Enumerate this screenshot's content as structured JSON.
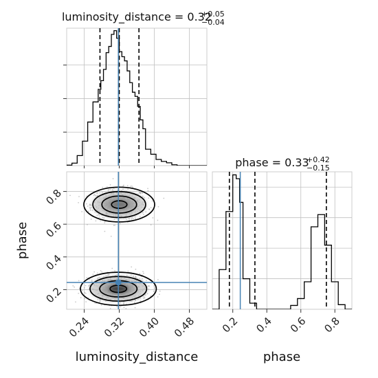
{
  "chart_data": {
    "type": "corner",
    "parameters": [
      "luminosity_distance",
      "phase"
    ],
    "truths": {
      "luminosity_distance": 0.318,
      "phase": 0.244
    },
    "colors": {
      "truth": "#4682b4",
      "hist": "#000000",
      "grid": "#c0c0c0",
      "frame": "#cccccc",
      "points": "#9a9a9a"
    },
    "grid": true,
    "panels": {
      "luminosity_distance_hist": {
        "title_prefix": "luminosity_distance = 0.32",
        "title_sup": "+0.05",
        "title_sub": "−0.04",
        "xlim": [
          0.2,
          0.52
        ],
        "ylim": [
          0,
          820
        ],
        "quantiles": [
          0.276,
          0.32,
          0.365
        ],
        "bin_edges": [
          0.2,
          0.212,
          0.224,
          0.236,
          0.248,
          0.26,
          0.272,
          0.278,
          0.284,
          0.29,
          0.296,
          0.302,
          0.308,
          0.314,
          0.32,
          0.326,
          0.332,
          0.338,
          0.344,
          0.35,
          0.356,
          0.362,
          0.368,
          0.374,
          0.38,
          0.392,
          0.404,
          0.416,
          0.428,
          0.44,
          0.452,
          0.52
        ],
        "counts": [
          3,
          15,
          60,
          146,
          260,
          380,
          455,
          507,
          574,
          674,
          711,
          783,
          805,
          760,
          680,
          650,
          625,
          565,
          495,
          438,
          413,
          353,
          273,
          220,
          98,
          68,
          37,
          25,
          17,
          5,
          0
        ]
      },
      "phase_hist": {
        "title_prefix": "phase = 0.33",
        "title_sup": "+0.42",
        "title_sub": "−0.15",
        "xlim": [
          0.08,
          0.9
        ],
        "ylim": [
          0,
          900
        ],
        "quantiles": [
          0.18,
          0.33,
          0.75
        ],
        "xticks": [
          "0.2",
          "0.4",
          "0.6",
          "0.8"
        ],
        "xlabel": "phase",
        "bin_edges": [
          0.08,
          0.12,
          0.16,
          0.2,
          0.22,
          0.24,
          0.26,
          0.3,
          0.34,
          0.38,
          0.42,
          0.46,
          0.5,
          0.54,
          0.58,
          0.62,
          0.66,
          0.7,
          0.74,
          0.78,
          0.82,
          0.86,
          0.9
        ],
        "counts": [
          0,
          260,
          640,
          880,
          855,
          700,
          200,
          40,
          0,
          0,
          0,
          0,
          0,
          25,
          70,
          180,
          540,
          620,
          420,
          180,
          30,
          0
        ]
      },
      "joint": {
        "xlim": [
          0.2,
          0.52
        ],
        "ylim": [
          0.08,
          0.92
        ],
        "xticks": [
          "0.24",
          "0.32",
          "0.40",
          "0.48"
        ],
        "yticks": [
          "0.2",
          "0.4",
          "0.6",
          "0.8"
        ],
        "xlabel": "luminosity_distance",
        "ylabel": "phase",
        "modes": [
          {
            "x": 0.32,
            "y": 0.72,
            "sx": 0.028,
            "sy": 0.042
          },
          {
            "x": 0.318,
            "y": 0.205,
            "sx": 0.03,
            "sy": 0.04
          }
        ]
      }
    }
  }
}
